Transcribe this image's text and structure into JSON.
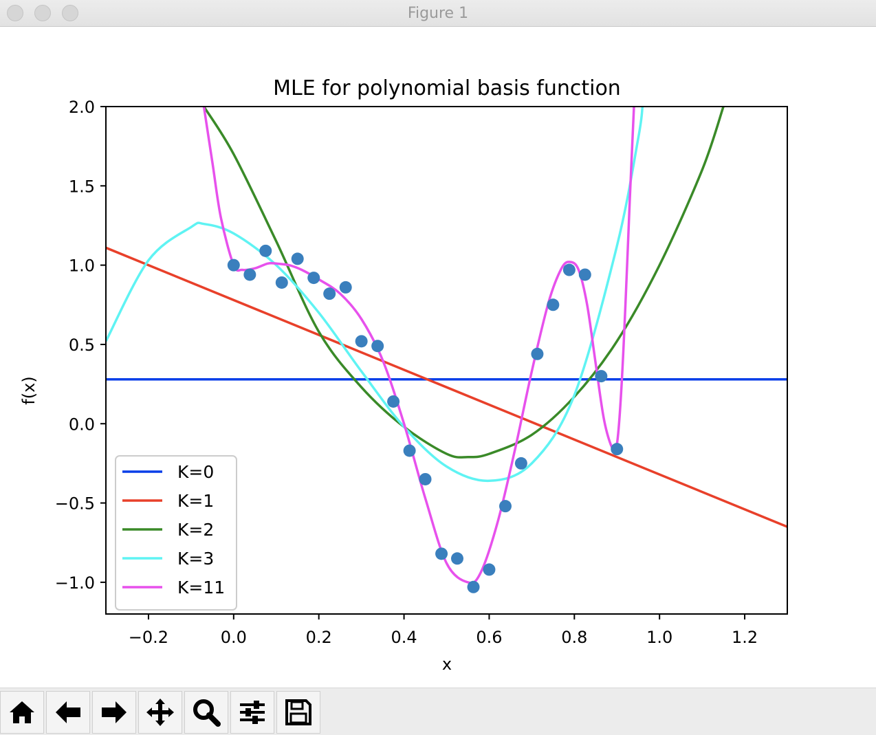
{
  "window": {
    "title": "Figure 1"
  },
  "toolbar": {
    "buttons": [
      {
        "name": "home-button",
        "icon": "home-icon"
      },
      {
        "name": "back-button",
        "icon": "arrow-left-icon"
      },
      {
        "name": "forward-button",
        "icon": "arrow-right-icon"
      },
      {
        "name": "pan-button",
        "icon": "move-icon"
      },
      {
        "name": "zoom-button",
        "icon": "magnifier-icon"
      },
      {
        "name": "configure-subplots-button",
        "icon": "sliders-icon"
      },
      {
        "name": "save-button",
        "icon": "floppy-disk-icon"
      }
    ]
  },
  "chart_data": {
    "type": "line",
    "title": "MLE for polynomial basis function",
    "xlabel": "x",
    "ylabel": "f(x)",
    "xlim": [
      -0.3,
      1.3
    ],
    "ylim": [
      -1.2,
      2.0
    ],
    "xticks": [
      "−0.2",
      "0.0",
      "0.2",
      "0.4",
      "0.6",
      "0.8",
      "1.0",
      "1.2"
    ],
    "xtick_values": [
      -0.2,
      0.0,
      0.2,
      0.4,
      0.6,
      0.8,
      1.0,
      1.2
    ],
    "yticks": [
      "2.0",
      "1.5",
      "1.0",
      "0.5",
      "0.0",
      "−0.5",
      "−1.0"
    ],
    "ytick_values": [
      2.0,
      1.5,
      1.0,
      0.5,
      0.0,
      -0.5,
      -1.0
    ],
    "grid": false,
    "legend_position": "lower-left",
    "scatter": {
      "color": "#3a7fbd",
      "x": [
        0.0,
        0.038,
        0.075,
        0.113,
        0.15,
        0.188,
        0.225,
        0.263,
        0.3,
        0.338,
        0.375,
        0.413,
        0.45,
        0.488,
        0.525,
        0.563,
        0.6,
        0.638,
        0.675,
        0.713,
        0.75,
        0.788,
        0.825,
        0.863,
        0.9
      ],
      "y": [
        1.0,
        0.94,
        1.09,
        0.89,
        1.04,
        0.92,
        0.82,
        0.86,
        0.52,
        0.49,
        0.14,
        -0.17,
        -0.35,
        -0.82,
        -0.85,
        -1.03,
        -0.92,
        -0.52,
        -0.25,
        0.44,
        0.75,
        0.97,
        0.94,
        0.3,
        -0.16
      ]
    },
    "series": [
      {
        "name": "K=0",
        "color": "#0a3fe8",
        "x": [
          -0.3,
          1.3
        ],
        "y": [
          0.28,
          0.28
        ]
      },
      {
        "name": "K=1",
        "color": "#e8402a",
        "x": [
          -0.3,
          1.3
        ],
        "y": [
          1.11,
          -0.65
        ]
      },
      {
        "name": "K=2",
        "color": "#3a8a28",
        "x": [
          -0.07,
          0.0,
          0.1,
          0.2,
          0.3,
          0.4,
          0.5,
          0.55,
          0.6,
          0.7,
          0.8,
          0.9,
          1.0,
          1.1,
          1.15
        ],
        "y": [
          2.0,
          1.7,
          1.15,
          0.58,
          0.23,
          -0.02,
          -0.19,
          -0.21,
          -0.19,
          -0.07,
          0.17,
          0.52,
          1.0,
          1.6,
          2.0
        ]
      },
      {
        "name": "K=3",
        "color": "#5ff3f3",
        "x": [
          -0.3,
          -0.2,
          -0.1,
          -0.07,
          0.0,
          0.1,
          0.2,
          0.3,
          0.4,
          0.5,
          0.6,
          0.7,
          0.8,
          0.9,
          0.95,
          0.96
        ],
        "y": [
          0.52,
          1.03,
          1.24,
          1.26,
          1.2,
          1.0,
          0.7,
          0.33,
          -0.02,
          -0.27,
          -0.36,
          -0.25,
          0.18,
          1.12,
          1.8,
          2.0
        ]
      },
      {
        "name": "K=11",
        "color": "#e751ec",
        "x": [
          -0.07,
          -0.05,
          -0.03,
          0.0,
          0.02,
          0.05,
          0.08,
          0.1,
          0.13,
          0.16,
          0.2,
          0.25,
          0.3,
          0.35,
          0.4,
          0.45,
          0.5,
          0.55,
          0.58,
          0.62,
          0.66,
          0.7,
          0.74,
          0.77,
          0.79,
          0.81,
          0.83,
          0.85,
          0.87,
          0.89,
          0.9,
          0.91,
          0.92,
          0.93,
          0.94
        ],
        "y": [
          2.0,
          1.65,
          1.3,
          1.0,
          0.97,
          0.98,
          1.01,
          1.01,
          1.0,
          0.97,
          0.91,
          0.82,
          0.66,
          0.4,
          0.0,
          -0.47,
          -0.88,
          -1.0,
          -0.94,
          -0.62,
          -0.17,
          0.33,
          0.77,
          0.98,
          1.02,
          0.97,
          0.75,
          0.38,
          0.02,
          -0.16,
          -0.13,
          0.2,
          0.75,
          1.4,
          2.0
        ]
      }
    ]
  }
}
